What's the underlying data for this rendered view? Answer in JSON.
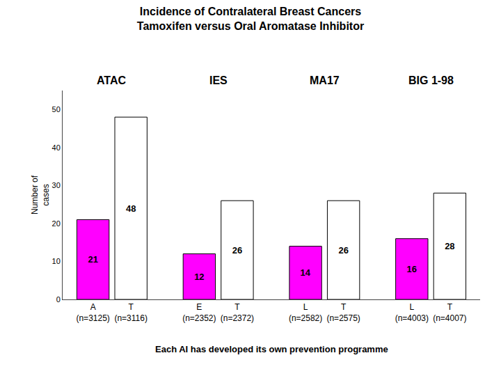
{
  "chart_data": {
    "type": "bar",
    "title": "Incidence of Contralateral Breast Cancers",
    "subtitle": "Tamoxifen versus Oral Aromatase Inhibitor",
    "categories": [
      "A\n(n=3125)",
      "T\n(n=3116)",
      "E\n(n=2352)",
      "T\n(n=2372)",
      "L\n(n=2582)",
      "T\n(n=2575)",
      "L\n(n=4003)",
      "T\n(n=4007)"
    ],
    "groups": [
      "ATAC",
      "IES",
      "MA17",
      "BIG 1-98"
    ],
    "values": [
      21,
      48,
      12,
      26,
      14,
      26,
      16,
      28
    ],
    "colors": [
      "#FF00FF",
      "#FFFFFF",
      "#FF00FF",
      "#FFFFFF",
      "#FF00FF",
      "#FFFFFF",
      "#FF00FF",
      "#FFFFFF"
    ],
    "ylabel": "Number of\n  cases",
    "ylim": [
      0,
      55
    ],
    "yticks": [
      0,
      10,
      20,
      30,
      40,
      50
    ],
    "grid": false,
    "data_labels": true,
    "annotations": [
      "Each AI has developed its own prevention programme"
    ]
  }
}
